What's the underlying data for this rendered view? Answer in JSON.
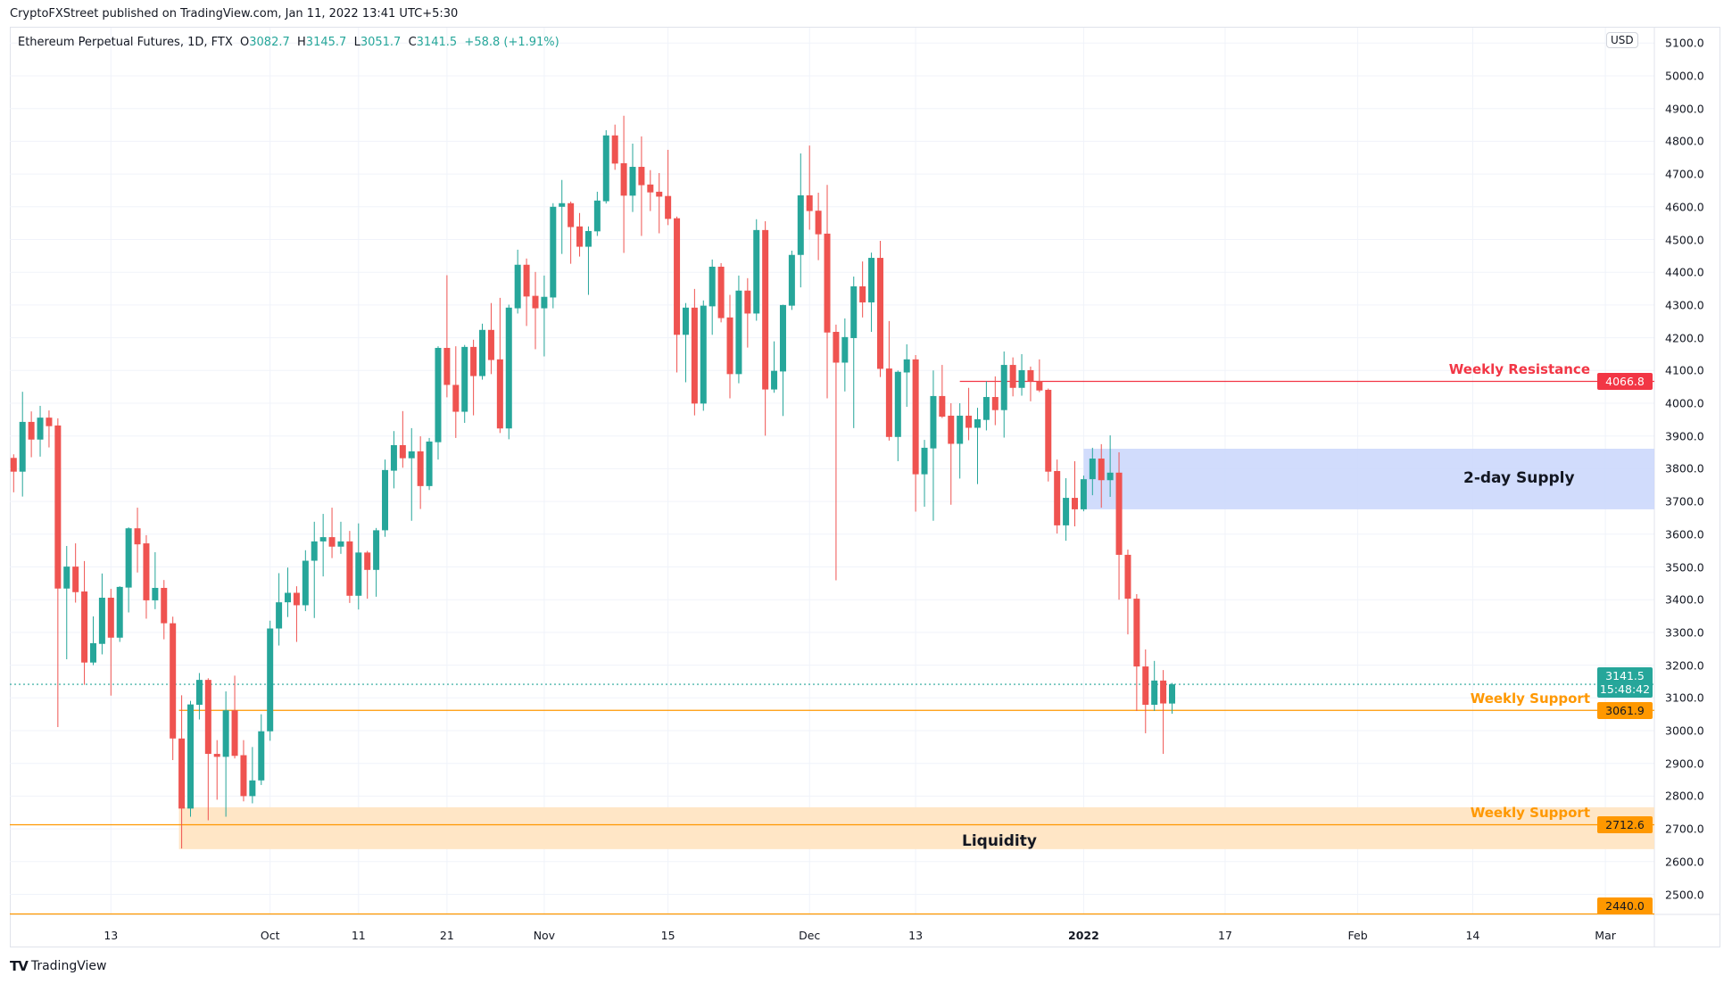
{
  "publish_line": "CryptoFXStreet published on TradingView.com, Jan 11, 2022 13:41 UTC+5:30",
  "legend": {
    "symbol": "Ethereum Perpetual Futures, 1D, FTX",
    "o_label": "O",
    "o": "3082.7",
    "h_label": "H",
    "h": "3145.7",
    "l_label": "L",
    "l": "3051.7",
    "c_label": "C",
    "c": "3141.5",
    "change": "+58.8 (+1.91%)"
  },
  "currency_button": "USD",
  "branding": {
    "logo_icon": "tradingview-logo-icon",
    "name": "TradingView"
  },
  "colors": {
    "up": "#26a69a",
    "down": "#ef5350",
    "resistance": "#f23645",
    "support": "#ff9800",
    "supply_zone": "#c9d6fb",
    "liquidity_zone": "#ffe6c6",
    "grid": "#f0f3fa"
  },
  "chart_data": {
    "type": "candlestick",
    "title": "Ethereum Perpetual Futures, 1D, FTX",
    "ylabel": "USD",
    "ylim": [
      2440,
      5150
    ],
    "grid": true,
    "y_ticks": [
      "2500.0",
      "2600.0",
      "2700.0",
      "2800.0",
      "2900.0",
      "3000.0",
      "3100.0",
      "3200.0",
      "3300.0",
      "3400.0",
      "3500.0",
      "3600.0",
      "3700.0",
      "3800.0",
      "3900.0",
      "4000.0",
      "4100.0",
      "4200.0",
      "4300.0",
      "4400.0",
      "4500.0",
      "4600.0",
      "4700.0",
      "4800.0",
      "4900.0",
      "5000.0",
      "5100.0"
    ],
    "x_ticks": [
      {
        "label": "13",
        "date": "2021-09-13"
      },
      {
        "label": "Oct",
        "date": "2021-10-01"
      },
      {
        "label": "11",
        "date": "2021-10-11"
      },
      {
        "label": "21",
        "date": "2021-10-21"
      },
      {
        "label": "Nov",
        "date": "2021-11-01"
      },
      {
        "label": "15",
        "date": "2021-11-15"
      },
      {
        "label": "Dec",
        "date": "2021-12-01"
      },
      {
        "label": "13",
        "date": "2021-12-13"
      },
      {
        "label": "2022",
        "date": "2022-01-01",
        "bold": true
      },
      {
        "label": "17",
        "date": "2022-01-17"
      },
      {
        "label": "Feb",
        "date": "2022-02-01"
      },
      {
        "label": "14",
        "date": "2022-02-14"
      },
      {
        "label": "Mar",
        "date": "2022-03-01"
      }
    ],
    "candles_columns": [
      "date",
      "open",
      "high",
      "low",
      "close"
    ],
    "candles": [
      [
        "2021-09-02",
        3833,
        3844,
        3728,
        3791
      ],
      [
        "2021-09-03",
        3791,
        4035,
        3715,
        3943
      ],
      [
        "2021-09-04",
        3943,
        3975,
        3835,
        3889
      ],
      [
        "2021-09-05",
        3889,
        3992,
        3837,
        3956
      ],
      [
        "2021-09-06",
        3956,
        3978,
        3865,
        3930
      ],
      [
        "2021-09-07",
        3932,
        3954,
        3011,
        3434
      ],
      [
        "2021-09-08",
        3434,
        3564,
        3218,
        3501
      ],
      [
        "2021-09-09",
        3501,
        3572,
        3391,
        3423
      ],
      [
        "2021-09-10",
        3425,
        3518,
        3140,
        3208
      ],
      [
        "2021-09-11",
        3208,
        3349,
        3200,
        3267
      ],
      [
        "2021-09-12",
        3265,
        3480,
        3233,
        3406
      ],
      [
        "2021-09-13",
        3406,
        3433,
        3107,
        3284
      ],
      [
        "2021-09-14",
        3284,
        3441,
        3271,
        3439
      ],
      [
        "2021-09-15",
        3437,
        3621,
        3361,
        3618
      ],
      [
        "2021-09-16",
        3618,
        3681,
        3483,
        3569
      ],
      [
        "2021-09-17",
        3572,
        3597,
        3342,
        3398
      ],
      [
        "2021-09-18",
        3398,
        3545,
        3371,
        3436
      ],
      [
        "2021-09-19",
        3436,
        3460,
        3279,
        3328
      ],
      [
        "2021-09-20",
        3328,
        3348,
        2910,
        2976
      ],
      [
        "2021-09-21",
        2976,
        3108,
        2640,
        2762
      ],
      [
        "2021-09-22",
        2762,
        3091,
        2737,
        3080
      ],
      [
        "2021-09-23",
        3079,
        3176,
        3034,
        3155
      ],
      [
        "2021-09-24",
        3155,
        3160,
        2726,
        2929
      ],
      [
        "2021-09-25",
        2929,
        2971,
        2789,
        2920
      ],
      [
        "2021-09-26",
        2920,
        3120,
        2737,
        3062
      ],
      [
        "2021-09-27",
        3062,
        3168,
        2915,
        2923
      ],
      [
        "2021-09-28",
        2925,
        2971,
        2784,
        2800
      ],
      [
        "2021-09-29",
        2800,
        2950,
        2778,
        2848
      ],
      [
        "2021-09-30",
        2848,
        3050,
        2834,
        2998
      ],
      [
        "2021-10-01",
        2998,
        3336,
        2969,
        3312
      ],
      [
        "2021-10-02",
        3312,
        3481,
        3260,
        3392
      ],
      [
        "2021-10-03",
        3392,
        3498,
        3347,
        3421
      ],
      [
        "2021-10-04",
        3421,
        3441,
        3271,
        3383
      ],
      [
        "2021-10-05",
        3383,
        3551,
        3365,
        3519
      ],
      [
        "2021-10-06",
        3519,
        3638,
        3344,
        3578
      ],
      [
        "2021-10-07",
        3578,
        3662,
        3471,
        3591
      ],
      [
        "2021-10-08",
        3591,
        3681,
        3527,
        3562
      ],
      [
        "2021-10-09",
        3562,
        3638,
        3540,
        3578
      ],
      [
        "2021-10-10",
        3578,
        3610,
        3390,
        3412
      ],
      [
        "2021-10-11",
        3412,
        3633,
        3370,
        3544
      ],
      [
        "2021-10-12",
        3544,
        3549,
        3403,
        3491
      ],
      [
        "2021-10-13",
        3491,
        3619,
        3409,
        3612
      ],
      [
        "2021-10-14",
        3612,
        3828,
        3592,
        3796
      ],
      [
        "2021-10-15",
        3794,
        3915,
        3740,
        3872
      ],
      [
        "2021-10-16",
        3872,
        3976,
        3803,
        3832
      ],
      [
        "2021-10-17",
        3832,
        3924,
        3641,
        3853
      ],
      [
        "2021-10-18",
        3853,
        3899,
        3677,
        3747
      ],
      [
        "2021-10-19",
        3747,
        3894,
        3735,
        3883
      ],
      [
        "2021-10-20",
        3881,
        4174,
        3828,
        4169
      ],
      [
        "2021-10-21",
        4169,
        4391,
        4018,
        4056
      ],
      [
        "2021-10-22",
        4056,
        4174,
        3894,
        3974
      ],
      [
        "2021-10-23",
        3974,
        4178,
        3940,
        4172
      ],
      [
        "2021-10-24",
        4172,
        4194,
        3963,
        4083
      ],
      [
        "2021-10-25",
        4083,
        4243,
        4072,
        4224
      ],
      [
        "2021-10-26",
        4224,
        4306,
        4089,
        4132
      ],
      [
        "2021-10-27",
        4134,
        4322,
        3909,
        3923
      ],
      [
        "2021-10-28",
        3923,
        4301,
        3890,
        4292
      ],
      [
        "2021-10-29",
        4290,
        4469,
        4274,
        4423
      ],
      [
        "2021-10-30",
        4423,
        4442,
        4236,
        4326
      ],
      [
        "2021-10-31",
        4328,
        4401,
        4165,
        4290
      ],
      [
        "2021-11-01",
        4290,
        4390,
        4143,
        4325
      ],
      [
        "2021-11-02",
        4323,
        4611,
        4290,
        4600
      ],
      [
        "2021-11-03",
        4600,
        4682,
        4456,
        4611
      ],
      [
        "2021-11-04",
        4611,
        4616,
        4426,
        4538
      ],
      [
        "2021-11-05",
        4540,
        4581,
        4448,
        4478
      ],
      [
        "2021-11-06",
        4478,
        4540,
        4331,
        4526
      ],
      [
        "2021-11-07",
        4525,
        4646,
        4511,
        4619
      ],
      [
        "2021-11-08",
        4617,
        4834,
        4610,
        4818
      ],
      [
        "2021-11-09",
        4818,
        4851,
        4713,
        4732
      ],
      [
        "2021-11-10",
        4733,
        4878,
        4459,
        4634
      ],
      [
        "2021-11-11",
        4634,
        4793,
        4584,
        4722
      ],
      [
        "2021-11-12",
        4722,
        4815,
        4511,
        4666
      ],
      [
        "2021-11-13",
        4668,
        4712,
        4587,
        4644
      ],
      [
        "2021-11-14",
        4646,
        4703,
        4519,
        4631
      ],
      [
        "2021-11-15",
        4633,
        4774,
        4544,
        4563
      ],
      [
        "2021-11-16",
        4565,
        4570,
        4094,
        4209
      ],
      [
        "2021-11-17",
        4209,
        4306,
        4064,
        4292
      ],
      [
        "2021-11-18",
        4292,
        4349,
        3963,
        3999
      ],
      [
        "2021-11-19",
        3999,
        4314,
        3977,
        4298
      ],
      [
        "2021-11-20",
        4296,
        4439,
        4209,
        4417
      ],
      [
        "2021-11-21",
        4417,
        4428,
        4247,
        4260
      ],
      [
        "2021-11-22",
        4262,
        4331,
        4015,
        4089
      ],
      [
        "2021-11-23",
        4089,
        4390,
        4061,
        4344
      ],
      [
        "2021-11-24",
        4344,
        4382,
        4170,
        4274
      ],
      [
        "2021-11-25",
        4274,
        4562,
        4252,
        4529
      ],
      [
        "2021-11-26",
        4529,
        4556,
        3901,
        4042
      ],
      [
        "2021-11-27",
        4042,
        4189,
        4032,
        4099
      ],
      [
        "2021-11-28",
        4097,
        4301,
        3961,
        4300
      ],
      [
        "2021-11-29",
        4298,
        4466,
        4285,
        4453
      ],
      [
        "2021-11-30",
        4453,
        4763,
        4354,
        4635
      ],
      [
        "2021-12-01",
        4635,
        4787,
        4530,
        4587
      ],
      [
        "2021-12-02",
        4588,
        4643,
        4437,
        4516
      ],
      [
        "2021-12-03",
        4518,
        4667,
        4015,
        4216
      ],
      [
        "2021-12-04",
        4218,
        4240,
        3459,
        4124
      ],
      [
        "2021-12-05",
        4124,
        4259,
        4036,
        4202
      ],
      [
        "2021-12-06",
        4199,
        4387,
        3924,
        4357
      ],
      [
        "2021-12-07",
        4357,
        4433,
        4262,
        4308
      ],
      [
        "2021-12-08",
        4308,
        4460,
        4218,
        4444
      ],
      [
        "2021-12-09",
        4444,
        4496,
        4080,
        4105
      ],
      [
        "2021-12-10",
        4106,
        4251,
        3886,
        3897
      ],
      [
        "2021-12-11",
        3897,
        4100,
        3823,
        4096
      ],
      [
        "2021-12-12",
        4094,
        4180,
        3989,
        4134
      ],
      [
        "2021-12-13",
        4134,
        4147,
        3669,
        3783
      ],
      [
        "2021-12-14",
        3783,
        3888,
        3684,
        3864
      ],
      [
        "2021-12-15",
        3862,
        4100,
        3641,
        4022
      ],
      [
        "2021-12-16",
        4022,
        4117,
        3955,
        3959
      ],
      [
        "2021-12-17",
        3962,
        4000,
        3690,
        3876
      ],
      [
        "2021-12-18",
        3876,
        4000,
        3770,
        3962
      ],
      [
        "2021-12-19",
        3962,
        4047,
        3887,
        3925
      ],
      [
        "2021-12-20",
        3925,
        3986,
        3753,
        3951
      ],
      [
        "2021-12-21",
        3949,
        4067,
        3917,
        4019
      ],
      [
        "2021-12-22",
        4019,
        4082,
        3933,
        3979
      ],
      [
        "2021-12-23",
        3979,
        4158,
        3895,
        4117
      ],
      [
        "2021-12-24",
        4117,
        4140,
        4021,
        4047
      ],
      [
        "2021-12-25",
        4047,
        4150,
        4023,
        4101
      ],
      [
        "2021-12-26",
        4101,
        4112,
        4006,
        4067
      ],
      [
        "2021-12-27",
        4067,
        4134,
        4034,
        4039
      ],
      [
        "2021-12-28",
        4041,
        4045,
        3761,
        3791
      ],
      [
        "2021-12-29",
        3793,
        3828,
        3602,
        3627
      ],
      [
        "2021-12-30",
        3627,
        3771,
        3580,
        3711
      ],
      [
        "2021-12-31",
        3711,
        3823,
        3624,
        3676
      ],
      [
        "2022-01-01",
        3676,
        3779,
        3670,
        3768
      ],
      [
        "2022-01-02",
        3768,
        3864,
        3719,
        3831
      ],
      [
        "2022-01-03",
        3831,
        3875,
        3681,
        3765
      ],
      [
        "2022-01-04",
        3765,
        3902,
        3714,
        3788
      ],
      [
        "2022-01-05",
        3788,
        3850,
        3400,
        3537
      ],
      [
        "2022-01-06",
        3537,
        3553,
        3294,
        3403
      ],
      [
        "2022-01-07",
        3403,
        3417,
        3060,
        3196
      ],
      [
        "2022-01-08",
        3196,
        3248,
        2992,
        3079
      ],
      [
        "2022-01-09",
        3079,
        3213,
        3060,
        3153
      ],
      [
        "2022-01-10",
        3153,
        3185,
        2929,
        3083
      ],
      [
        "2022-01-11",
        3082.7,
        3145.7,
        3051.7,
        3141.5
      ]
    ],
    "last_price": {
      "value": "3141.5",
      "countdown": "15:48:42"
    },
    "annotations": {
      "weekly_resistance": {
        "label": "Weekly Resistance",
        "price": 4066.8,
        "start": "2021-12-18"
      },
      "supply_zone": {
        "label": "2-day Supply",
        "low": 3676,
        "high": 3861,
        "start": "2022-01-01"
      },
      "weekly_support_1": {
        "label": "Weekly Support",
        "price": 3061.9,
        "start": "2021-09-21"
      },
      "weekly_support_2": {
        "label": "Weekly Support",
        "price": 2712.6,
        "start": "2021-09-02"
      },
      "liquidity_zone": {
        "label": "Liquidity",
        "low": 2638,
        "high": 2766,
        "start": "2021-09-21"
      },
      "level_2440": {
        "price": 2440.0,
        "start": "2021-09-02"
      }
    },
    "axis_badges": [
      {
        "value": "4066.8",
        "color": "#f23645",
        "text_color": "#ffffff"
      },
      {
        "value": "3061.9",
        "color": "#ff9800",
        "text_color": "#131722"
      },
      {
        "value": "2712.6",
        "color": "#ff9800",
        "text_color": "#131722"
      },
      {
        "value": "2440.0",
        "color": "#ff9800",
        "text_color": "#131722"
      }
    ]
  }
}
